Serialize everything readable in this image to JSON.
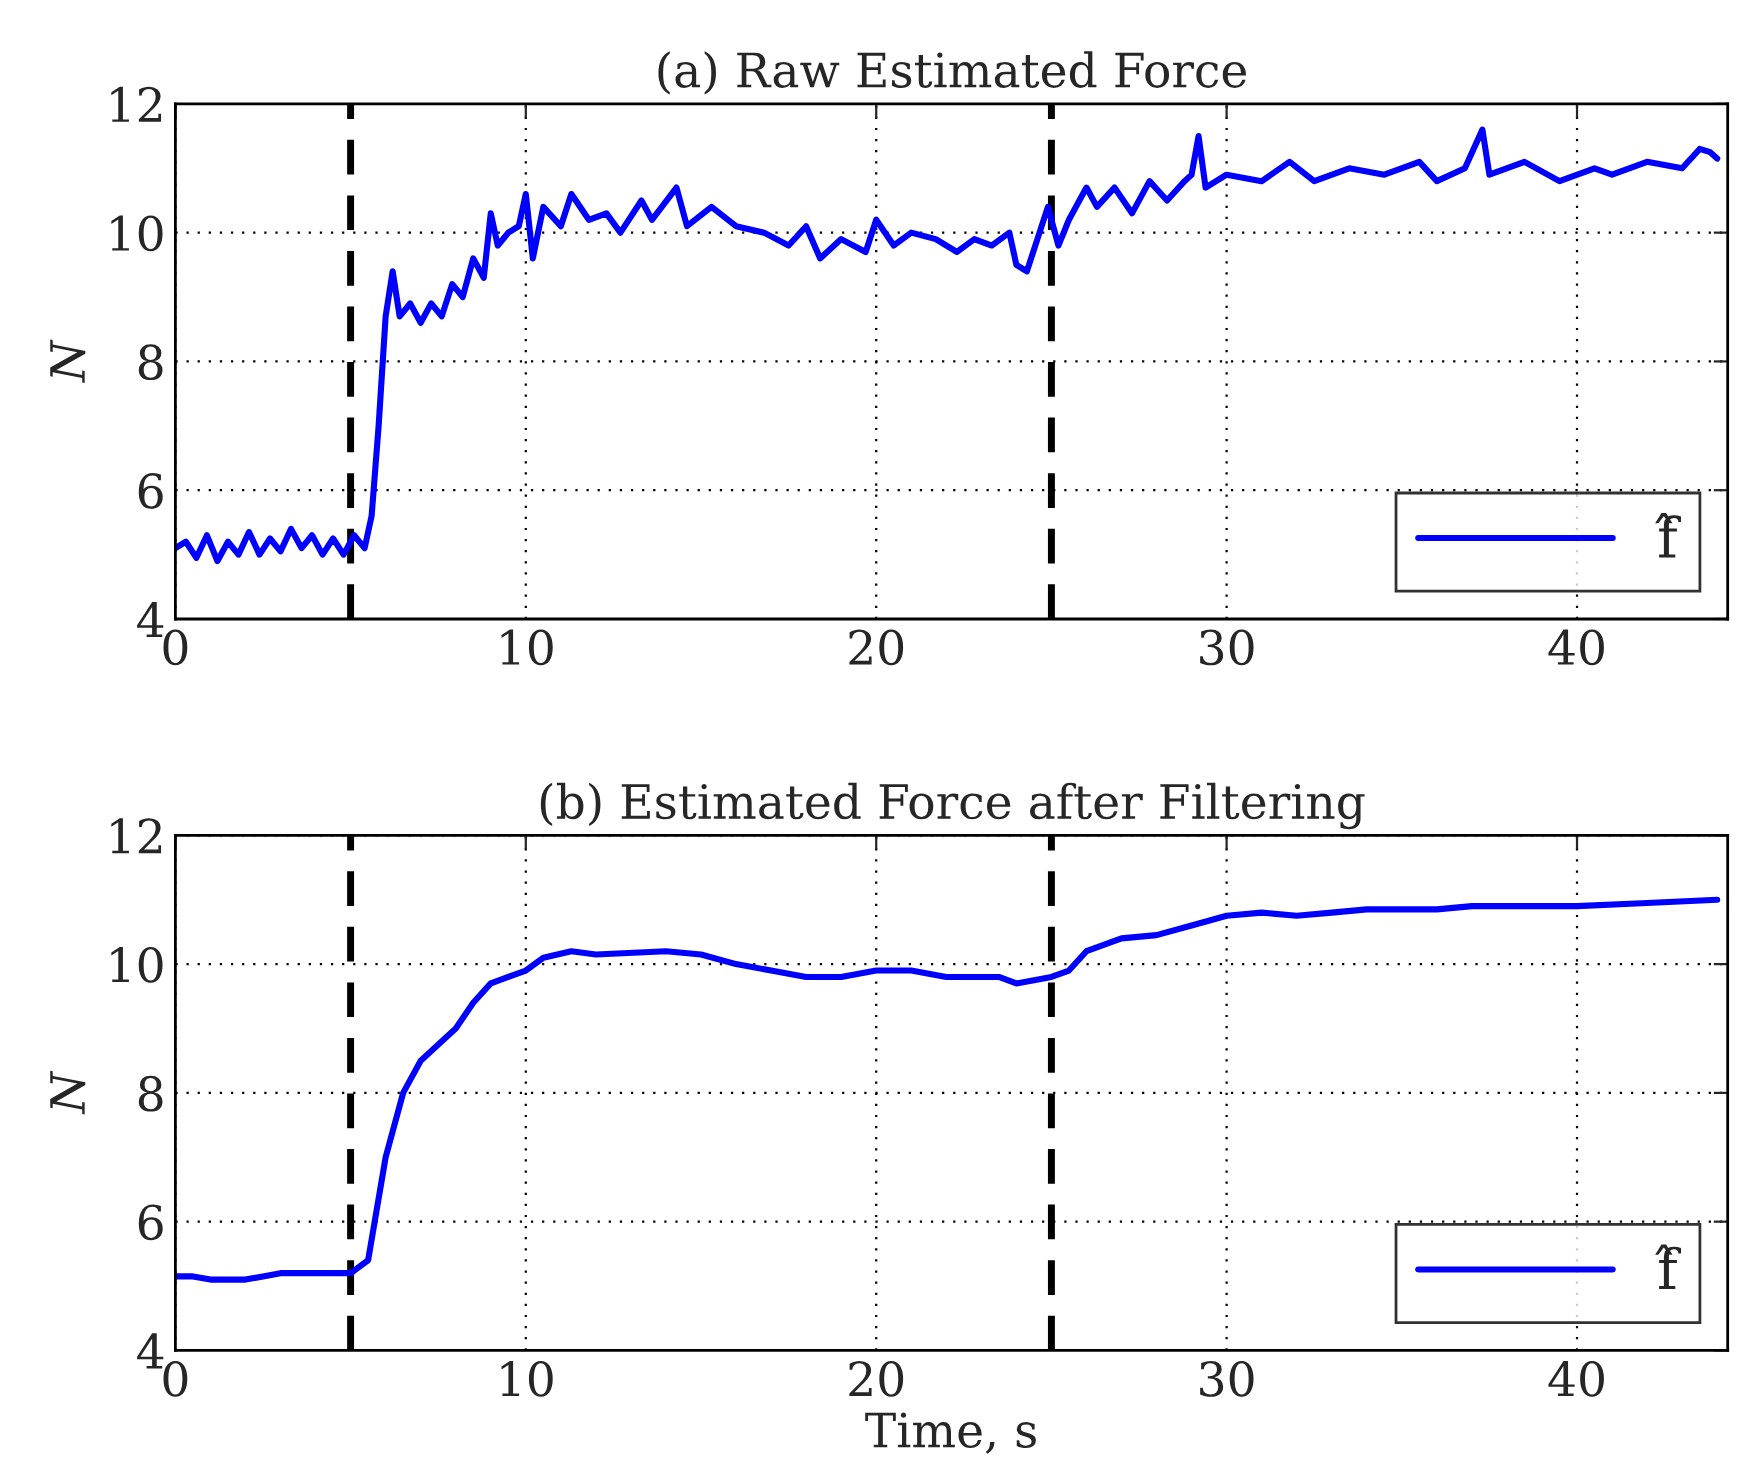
{
  "chart_data": [
    {
      "type": "line",
      "title": "(a) Raw Estimated Force",
      "ylabel": "N",
      "xlim": [
        0,
        44.3
      ],
      "xticks": [
        0,
        10,
        20,
        30,
        40
      ],
      "ylim": [
        4,
        12
      ],
      "yticks": [
        4,
        6,
        8,
        10,
        12
      ],
      "grid": true,
      "legend": "bottom right",
      "tick_labels": true,
      "ref_lines": [
        {
          "axis": "x",
          "value": 5,
          "color": "#000000",
          "line_style": "dashed"
        },
        {
          "axis": "x",
          "value": 25,
          "color": "#000000",
          "line_style": "dashed"
        }
      ],
      "series": [
        {
          "name": "f̂",
          "color": "#0000ff",
          "x": [
            0,
            0.3,
            0.6,
            0.9,
            1.2,
            1.5,
            1.8,
            2.1,
            2.4,
            2.7,
            3.0,
            3.3,
            3.6,
            3.9,
            4.2,
            4.5,
            4.8,
            5.1,
            5.4,
            5.6,
            5.8,
            6.0,
            6.2,
            6.4,
            6.7,
            7.0,
            7.3,
            7.6,
            7.9,
            8.2,
            8.5,
            8.8,
            9.0,
            9.2,
            9.5,
            9.8,
            10.0,
            10.2,
            10.5,
            11.0,
            11.3,
            11.8,
            12.3,
            12.7,
            13.3,
            13.6,
            14.3,
            14.6,
            15.3,
            16.0,
            16.8,
            17.5,
            18.0,
            18.4,
            19.0,
            19.7,
            20.0,
            20.5,
            21.0,
            21.7,
            22.3,
            22.8,
            23.3,
            23.8,
            24.0,
            24.3,
            24.6,
            24.9,
            25.2,
            25.5,
            26.0,
            26.3,
            26.8,
            27.3,
            27.8,
            28.3,
            28.8,
            29.0,
            29.2,
            29.4,
            30.0,
            31.0,
            31.8,
            32.5,
            33.5,
            34.5,
            35.5,
            36.0,
            36.8,
            37.3,
            37.5,
            38.5,
            39.5,
            40.5,
            41.0,
            42.0,
            43.0,
            43.5,
            43.8,
            44.0
          ],
          "values": [
            5.1,
            5.2,
            4.95,
            5.3,
            4.9,
            5.2,
            5.0,
            5.35,
            5.0,
            5.25,
            5.05,
            5.4,
            5.1,
            5.3,
            5.0,
            5.25,
            5.0,
            5.3,
            5.1,
            5.6,
            7.0,
            8.7,
            9.4,
            8.7,
            8.9,
            8.6,
            8.9,
            8.7,
            9.2,
            9.0,
            9.6,
            9.3,
            10.3,
            9.8,
            10.0,
            10.1,
            10.6,
            9.6,
            10.4,
            10.1,
            10.6,
            10.2,
            10.3,
            10.0,
            10.5,
            10.2,
            10.7,
            10.1,
            10.4,
            10.1,
            10.0,
            9.8,
            10.1,
            9.6,
            9.9,
            9.7,
            10.2,
            9.8,
            10.0,
            9.9,
            9.7,
            9.9,
            9.8,
            10.0,
            9.5,
            9.4,
            9.9,
            10.4,
            9.8,
            10.2,
            10.7,
            10.4,
            10.7,
            10.3,
            10.8,
            10.5,
            10.8,
            10.9,
            11.5,
            10.7,
            10.9,
            10.8,
            11.1,
            10.8,
            11.0,
            10.9,
            11.1,
            10.8,
            11.0,
            11.6,
            10.9,
            11.1,
            10.8,
            11.0,
            10.9,
            11.1,
            11.0,
            11.3,
            11.25,
            11.15
          ]
        }
      ]
    },
    {
      "type": "line",
      "title": "(b) Estimated Force after Filtering",
      "xlabel": "Time, s",
      "ylabel": "N",
      "xlim": [
        0,
        44.3
      ],
      "xticks": [
        0,
        10,
        20,
        30,
        40
      ],
      "ylim": [
        4,
        12
      ],
      "yticks": [
        4,
        6,
        8,
        10,
        12
      ],
      "grid": true,
      "legend": "bottom right",
      "ref_lines": [
        {
          "axis": "x",
          "value": 5,
          "color": "#000000",
          "line_style": "dashed"
        },
        {
          "axis": "x",
          "value": 25,
          "color": "#000000",
          "line_style": "dashed"
        }
      ],
      "series": [
        {
          "name": "f̂",
          "color": "#0000ff",
          "x": [
            0,
            0.5,
            1,
            2,
            3,
            4,
            5,
            5.5,
            6.0,
            6.5,
            7.0,
            8.0,
            8.5,
            9.0,
            10,
            10.5,
            11.3,
            12,
            14,
            15,
            16,
            17,
            18,
            19,
            20,
            21,
            22,
            23.5,
            24,
            25,
            25.5,
            26,
            27,
            28,
            29,
            30,
            31,
            32,
            33,
            34,
            36,
            37,
            40,
            42,
            44
          ],
          "values": [
            5.15,
            5.15,
            5.1,
            5.1,
            5.2,
            5.2,
            5.2,
            5.4,
            7.0,
            8.0,
            8.5,
            9.0,
            9.4,
            9.7,
            9.9,
            10.1,
            10.2,
            10.15,
            10.2,
            10.15,
            10.0,
            9.9,
            9.8,
            9.8,
            9.9,
            9.9,
            9.8,
            9.8,
            9.7,
            9.8,
            9.9,
            10.2,
            10.4,
            10.45,
            10.6,
            10.75,
            10.8,
            10.75,
            10.8,
            10.85,
            10.85,
            10.9,
            10.9,
            10.95,
            11.0
          ]
        }
      ]
    }
  ]
}
